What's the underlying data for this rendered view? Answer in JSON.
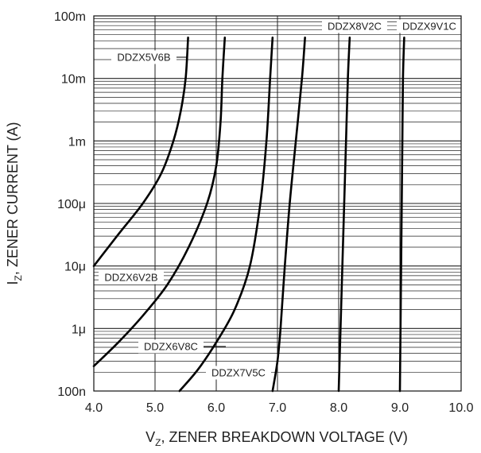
{
  "chart_data": {
    "type": "line",
    "title": "",
    "xlabel": {
      "main": "V",
      "sub": "Z",
      "rest": ", ZENER BREAKDOWN VOLTAGE (V)"
    },
    "ylabel": {
      "main": "I",
      "sub": "Z",
      "rest": ", ZENER CURRENT (A)"
    },
    "xlim": [
      4.0,
      10.0
    ],
    "ylim": [
      1e-07,
      0.1
    ],
    "xscale": "linear",
    "yscale": "log",
    "grid": true,
    "legend": "none",
    "xticks": [
      {
        "value": 4.0,
        "label": "4.0"
      },
      {
        "value": 5.0,
        "label": "5.0"
      },
      {
        "value": 6.0,
        "label": "6.0"
      },
      {
        "value": 7.0,
        "label": "7.0"
      },
      {
        "value": 8.0,
        "label": "8.0"
      },
      {
        "value": 9.0,
        "label": "9.0"
      },
      {
        "value": 10.0,
        "label": "10.0"
      }
    ],
    "yticks": [
      {
        "value": 0.1,
        "label": "100m"
      },
      {
        "value": 0.01,
        "label": "10m"
      },
      {
        "value": 0.001,
        "label": "1m"
      },
      {
        "value": 0.0001,
        "label": "100μ"
      },
      {
        "value": 1e-05,
        "label": "10μ"
      },
      {
        "value": 1e-06,
        "label": "1μ"
      },
      {
        "value": 1e-07,
        "label": "100n"
      }
    ],
    "series": [
      {
        "name": "DDZX5V6B",
        "points": [
          [
            4.0,
            1e-05
          ],
          [
            4.4,
            3.2e-05
          ],
          [
            4.8,
            0.0001
          ],
          [
            5.1,
            0.0003
          ],
          [
            5.3,
            0.001
          ],
          [
            5.42,
            0.003
          ],
          [
            5.5,
            0.01
          ],
          [
            5.54,
            0.045
          ]
        ]
      },
      {
        "name": "DDZX6V2B",
        "points": [
          [
            4.0,
            2.5e-07
          ],
          [
            4.4,
            6e-07
          ],
          [
            4.8,
            1.6e-06
          ],
          [
            5.2,
            5e-06
          ],
          [
            5.55,
            2e-05
          ],
          [
            5.85,
            0.0001
          ],
          [
            6.0,
            0.0004
          ],
          [
            6.07,
            0.002
          ],
          [
            6.1,
            0.01
          ],
          [
            6.14,
            0.045
          ]
        ]
      },
      {
        "name": "DDZX6V8C",
        "points": [
          [
            5.4,
            1e-07
          ],
          [
            5.7,
            2.2e-07
          ],
          [
            6.0,
            6e-07
          ],
          [
            6.3,
            2e-06
          ],
          [
            6.55,
            1e-05
          ],
          [
            6.72,
            0.0001
          ],
          [
            6.82,
            0.001
          ],
          [
            6.88,
            0.01
          ],
          [
            6.92,
            0.045
          ]
        ]
      },
      {
        "name": "DDZX7V5C",
        "points": [
          [
            6.92,
            1e-07
          ],
          [
            7.0,
            3e-07
          ],
          [
            7.05,
            1e-06
          ],
          [
            7.12,
            1e-05
          ],
          [
            7.2,
            0.0001
          ],
          [
            7.3,
            0.001
          ],
          [
            7.4,
            0.01
          ],
          [
            7.45,
            0.045
          ]
        ]
      },
      {
        "name": "DDZX8V2C",
        "points": [
          [
            8.0,
            1e-07
          ],
          [
            8.03,
            1e-06
          ],
          [
            8.06,
            1e-05
          ],
          [
            8.09,
            0.0001
          ],
          [
            8.12,
            0.001
          ],
          [
            8.15,
            0.01
          ],
          [
            8.18,
            0.045
          ]
        ]
      },
      {
        "name": "DDZX9V1C",
        "points": [
          [
            9.0,
            1e-07
          ],
          [
            9.01,
            1e-06
          ],
          [
            9.02,
            1e-05
          ],
          [
            9.03,
            0.0001
          ],
          [
            9.04,
            0.001
          ],
          [
            9.05,
            0.01
          ],
          [
            9.07,
            0.045
          ]
        ]
      }
    ],
    "annotations": [
      {
        "text": "DDZX5V6B",
        "series": "DDZX5V6B"
      },
      {
        "text": "DDZX6V2B",
        "series": "DDZX6V2B"
      },
      {
        "text": "DDZX6V8C",
        "series": "DDZX6V8C"
      },
      {
        "text": "DDZX7V5C",
        "series": "DDZX7V5C"
      },
      {
        "text": "DDZX8V2C",
        "series": "DDZX8V2C"
      },
      {
        "text": "DDZX9V1C",
        "series": "DDZX9V1C"
      }
    ]
  }
}
